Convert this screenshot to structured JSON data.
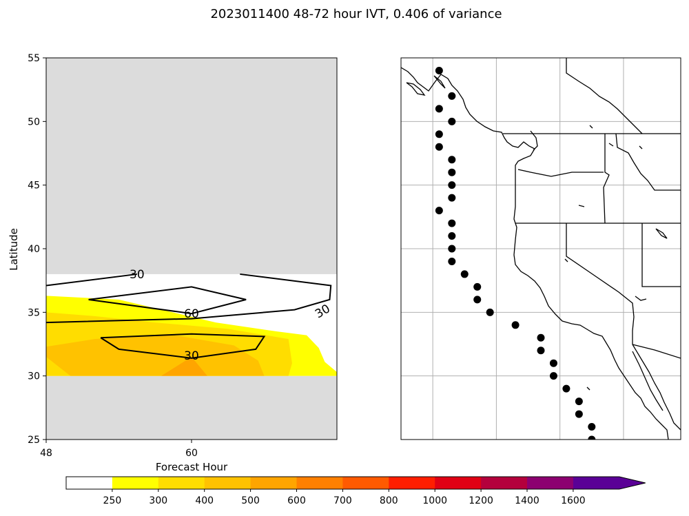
{
  "title": "2023011400 48-72 hour IVT, 0.406 of variance",
  "chart_data": [
    {
      "type": "heatmap",
      "panel": "left",
      "xlabel": "Forecast Hour",
      "ylabel": "Latitude",
      "xlim": [
        48,
        72
      ],
      "ylim": [
        25,
        55
      ],
      "xticks": [
        48,
        60
      ],
      "yticks": [
        25,
        30,
        35,
        40,
        45,
        50,
        55
      ],
      "valid_range_lat": [
        30,
        38
      ],
      "missing_color": "#dcdcdc",
      "filled_regions": [
        {
          "level": 250,
          "color": "#ffff00",
          "polygon": [
            [
              48,
              36.3
            ],
            [
              54,
              36.0
            ],
            [
              62,
              34.2
            ],
            [
              67,
              33.5
            ],
            [
              69.5,
              33.2
            ],
            [
              70.5,
              32.2
            ],
            [
              71,
              31.1
            ],
            [
              72,
              30.3
            ],
            [
              72,
              30
            ],
            [
              48,
              30
            ]
          ]
        },
        {
          "level": 300,
          "color": "#ffdd00",
          "polygon": [
            [
              48,
              35.0
            ],
            [
              52,
              34.7
            ],
            [
              57,
              34.2
            ],
            [
              63,
              33.7
            ],
            [
              68,
              32.9
            ],
            [
              68.3,
              31.0
            ],
            [
              68,
              30
            ],
            [
              48,
              30
            ]
          ]
        },
        {
          "level": 400,
          "color": "#ffc200",
          "polygon": [
            [
              48,
              32.3
            ],
            [
              52,
              32.9
            ],
            [
              58,
              33.3
            ],
            [
              63.5,
              32.4
            ],
            [
              65.5,
              31.2
            ],
            [
              66,
              30
            ],
            [
              50,
              30
            ],
            [
              48,
              31.5
            ]
          ]
        },
        {
          "level": 500,
          "color": "#ffa500",
          "polygon": [
            [
              57.5,
              30
            ],
            [
              60,
              31.5
            ],
            [
              61.3,
              30
            ]
          ]
        }
      ],
      "contours": [
        {
          "label": "30",
          "points": [
            [
              48,
              37.1
            ],
            [
              55.5,
              38.0
            ]
          ]
        },
        {
          "label": "30",
          "points": [
            [
              64,
              38.0
            ],
            [
              71.5,
              37.1
            ],
            [
              71.4,
              36.0
            ],
            [
              68.5,
              35.2
            ],
            [
              60,
              34.5
            ],
            [
              48,
              34.2
            ]
          ]
        },
        {
          "label": "60",
          "points": [
            [
              51.5,
              36.0
            ],
            [
              60,
              37.0
            ],
            [
              64.5,
              36.0
            ],
            [
              60,
              34.9
            ],
            [
              51.5,
              36.0
            ]
          ]
        },
        {
          "label": "30",
          "points": [
            [
              52.5,
              33.0
            ],
            [
              60,
              33.3
            ],
            [
              66.0,
              33.1
            ],
            [
              65.3,
              32.1
            ],
            [
              60,
              31.4
            ],
            [
              54.0,
              32.1
            ],
            [
              52.5,
              33.0
            ]
          ]
        }
      ],
      "contour_labels": [
        {
          "text": "30",
          "x": 55.5,
          "y": 38.0
        },
        {
          "text": "60",
          "x": 60.0,
          "y": 34.9
        },
        {
          "text": "30",
          "x": 70.8,
          "y": 35.1
        },
        {
          "text": "30",
          "x": 60.0,
          "y": 31.6
        }
      ]
    },
    {
      "type": "scatter",
      "panel": "right",
      "description_of_marks": "coastal landfall points",
      "points": [
        [
          -124.5,
          54
        ],
        [
          -123.5,
          52
        ],
        [
          -124.5,
          51
        ],
        [
          -123.5,
          50
        ],
        [
          -124.5,
          49
        ],
        [
          -124.5,
          48
        ],
        [
          -123.5,
          47
        ],
        [
          -123.5,
          46
        ],
        [
          -123.5,
          45
        ],
        [
          -123.5,
          44
        ],
        [
          -124.5,
          43
        ],
        [
          -123.5,
          42
        ],
        [
          -123.5,
          41
        ],
        [
          -123.5,
          40
        ],
        [
          -123.5,
          39
        ],
        [
          -122.5,
          38
        ],
        [
          -121.5,
          37
        ],
        [
          -121.5,
          36
        ],
        [
          -120.5,
          35
        ],
        [
          -118.5,
          34
        ],
        [
          -116.5,
          33
        ],
        [
          -116.5,
          32
        ],
        [
          -115.5,
          31
        ],
        [
          -115.5,
          30
        ],
        [
          -114.5,
          29
        ],
        [
          -113.5,
          28
        ],
        [
          -113.5,
          27
        ],
        [
          -112.5,
          26
        ],
        [
          -112.5,
          25
        ]
      ],
      "lon_range": [
        -127.5,
        -105.5
      ],
      "lat_range": [
        25,
        55
      ],
      "gridlines_lon": [
        -125,
        -120,
        -115,
        -110
      ],
      "gridlines_lat": [
        30,
        35,
        40,
        45,
        50
      ]
    }
  ],
  "colorbar": {
    "levels": [
      "250",
      "300",
      "400",
      "500",
      "600",
      "700",
      "800",
      "1000",
      "1200",
      "1400",
      "1600"
    ],
    "colors": [
      "#ffffff",
      "#ffff00",
      "#ffdd00",
      "#ffc200",
      "#ffa500",
      "#ff8000",
      "#ff5a00",
      "#ff1e00",
      "#e00014",
      "#b4003c",
      "#8c0070",
      "#5a0096"
    ],
    "extend": "max"
  }
}
